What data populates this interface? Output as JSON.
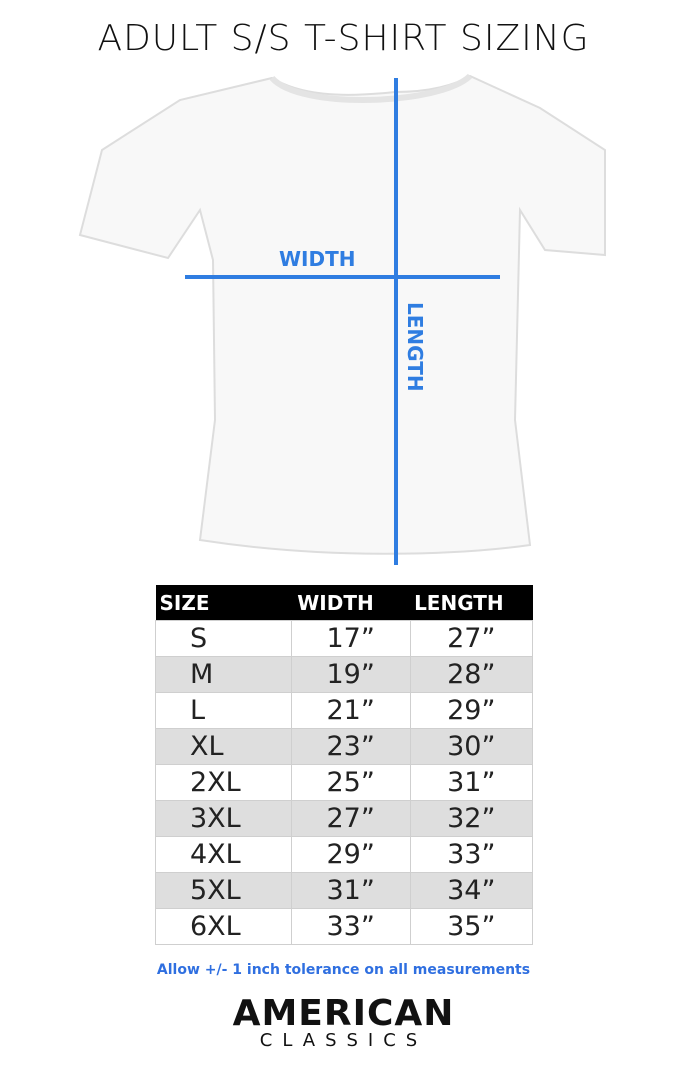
{
  "title": "ADULT S/S T-SHIRT SIZING",
  "diagram": {
    "width_label": "WIDTH",
    "length_label": "LENGTH",
    "line_color": "#2f7de1"
  },
  "table": {
    "headers": [
      "SIZE",
      "WIDTH",
      "LENGTH"
    ],
    "rows": [
      [
        "S",
        "17”",
        "27”"
      ],
      [
        "M",
        "19”",
        "28”"
      ],
      [
        "L",
        "21”",
        "29”"
      ],
      [
        "XL",
        "23”",
        "30”"
      ],
      [
        "2XL",
        "25”",
        "31”"
      ],
      [
        "3XL",
        "27”",
        "32”"
      ],
      [
        "4XL",
        "29”",
        "33”"
      ],
      [
        "5XL",
        "31”",
        "34”"
      ],
      [
        "6XL",
        "33”",
        "35”"
      ]
    ]
  },
  "note": "Allow +/- 1 inch tolerance on all measurements",
  "logo": {
    "line1": "AMERICAN",
    "line2": "CLASSICS"
  }
}
